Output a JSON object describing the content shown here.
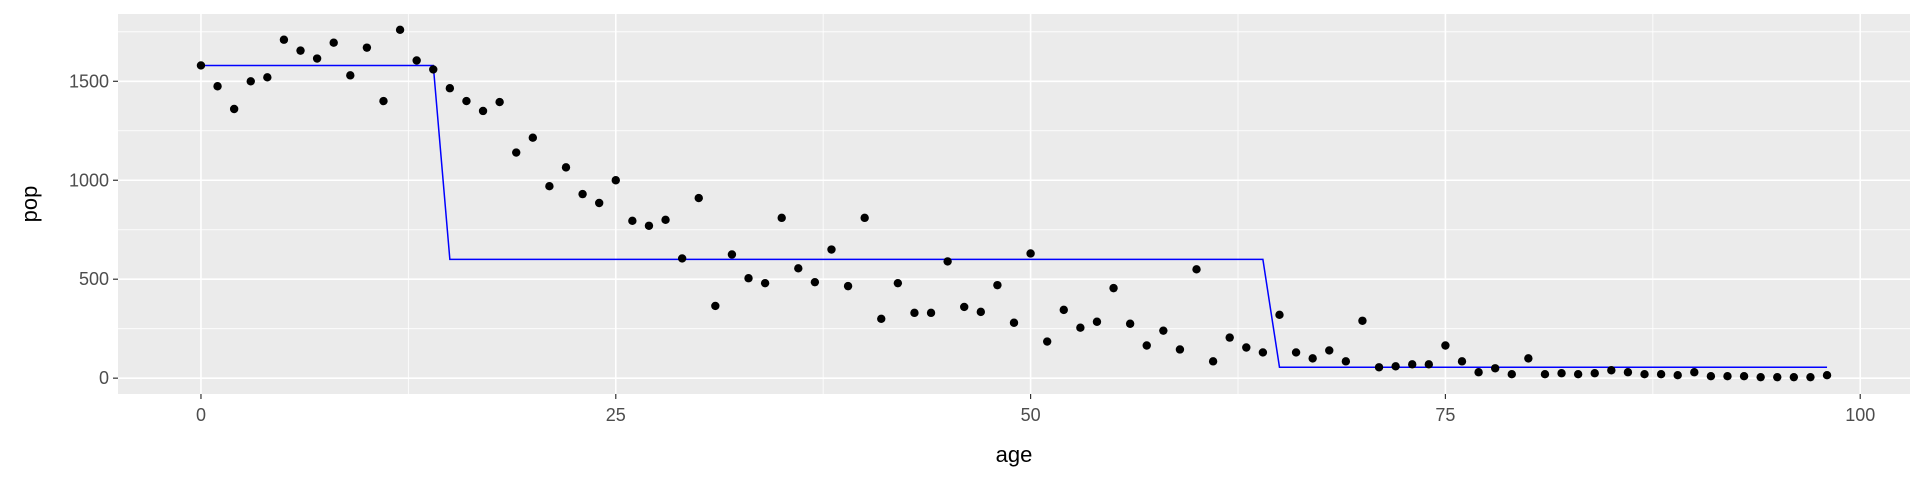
{
  "chart_data": {
    "type": "scatter",
    "title": "",
    "xlabel": "age",
    "ylabel": "pop",
    "xlim": [
      -5,
      103
    ],
    "ylim": [
      -80,
      1840
    ],
    "x_ticks": [
      0,
      25,
      50,
      75,
      100
    ],
    "y_ticks": [
      0,
      500,
      1000,
      1500
    ],
    "x_minor": [
      12.5,
      37.5,
      62.5,
      87.5
    ],
    "y_minor": [
      250,
      750,
      1250,
      1750
    ],
    "grid": true,
    "colors": {
      "panel": "#ebebeb",
      "grid": "#ffffff",
      "points": "#000000",
      "fit_line": "#0000ff"
    },
    "points": {
      "x": [
        0,
        1,
        2,
        3,
        4,
        5,
        6,
        7,
        8,
        9,
        10,
        11,
        12,
        13,
        14,
        15,
        16,
        17,
        18,
        19,
        20,
        21,
        22,
        23,
        24,
        25,
        26,
        27,
        28,
        29,
        30,
        31,
        32,
        33,
        34,
        35,
        36,
        37,
        38,
        39,
        40,
        41,
        42,
        43,
        44,
        45,
        46,
        47,
        48,
        49,
        50,
        51,
        52,
        53,
        54,
        55,
        56,
        57,
        58,
        59,
        60,
        61,
        62,
        63,
        64,
        65,
        66,
        67,
        68,
        69,
        70,
        71,
        72,
        73,
        74,
        75,
        76,
        77,
        78,
        79,
        80,
        81,
        82,
        83,
        84,
        85,
        86,
        87,
        88,
        89,
        90,
        91,
        92,
        93,
        94,
        95,
        96,
        97,
        98
      ],
      "y": [
        1580,
        1475,
        1360,
        1500,
        1520,
        1710,
        1655,
        1615,
        1695,
        1530,
        1670,
        1400,
        1760,
        1605,
        1560,
        1465,
        1400,
        1350,
        1395,
        1140,
        1215,
        970,
        1065,
        930,
        885,
        1000,
        795,
        770,
        800,
        605,
        910,
        365,
        625,
        505,
        480,
        810,
        555,
        485,
        650,
        465,
        810,
        300,
        480,
        330,
        330,
        590,
        360,
        335,
        470,
        280,
        630,
        185,
        345,
        255,
        285,
        455,
        275,
        165,
        240,
        145,
        550,
        85,
        205,
        155,
        130,
        320,
        130,
        100,
        140,
        85,
        290,
        55,
        60,
        70,
        70,
        165,
        85,
        30,
        50,
        20,
        100,
        20,
        25,
        20,
        25,
        40,
        30,
        20,
        20,
        15,
        30,
        10,
        10,
        10,
        5,
        5,
        5,
        5,
        15
      ]
    },
    "fit_line": {
      "x": [
        0,
        14,
        15,
        64,
        65,
        98
      ],
      "y": [
        1580,
        1580,
        600,
        600,
        55,
        55
      ]
    }
  }
}
